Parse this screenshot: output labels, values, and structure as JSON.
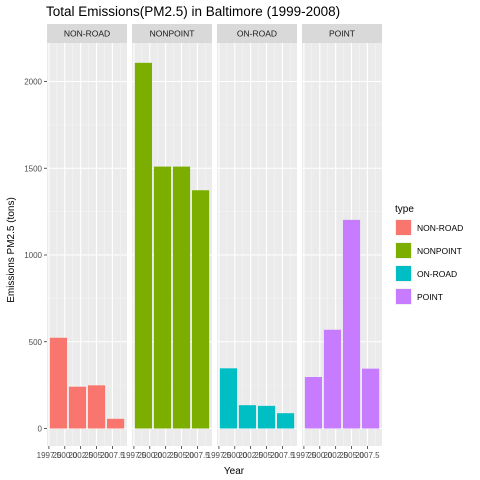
{
  "chart_data": {
    "type": "bar",
    "title": "Total Emissions(PM2.5) in Baltimore (1999-2008)",
    "xlabel": "Year",
    "ylabel": "Emissions PM2.5 (tons)",
    "ylim": [
      0,
      2200
    ],
    "y_ticks": [
      0,
      500,
      1000,
      1500,
      2000
    ],
    "x_ticks": [
      "1997.5",
      "2000.0",
      "2002.5",
      "2005.0",
      "2007.5"
    ],
    "xlim": [
      1997.2,
      2009.8
    ],
    "grid": true,
    "legend_title": "type",
    "legend_position": "right",
    "facet_by": "type",
    "years": [
      1999,
      2002,
      2005,
      2008
    ],
    "series": [
      {
        "name": "NON-ROAD",
        "color": "#F8766D",
        "values": [
          522.94,
          240.85,
          248.93,
          55.82
        ]
      },
      {
        "name": "NONPOINT",
        "color": "#7CAE00",
        "values": [
          2107.63,
          1509.5,
          1509.5,
          1373.21
        ]
      },
      {
        "name": "ON-ROAD",
        "color": "#00BFC4",
        "values": [
          346.82,
          134.31,
          130.43,
          88.28
        ]
      },
      {
        "name": "POINT",
        "color": "#C77CFF",
        "values": [
          296.8,
          569.26,
          1202.49,
          344.98
        ]
      }
    ]
  }
}
